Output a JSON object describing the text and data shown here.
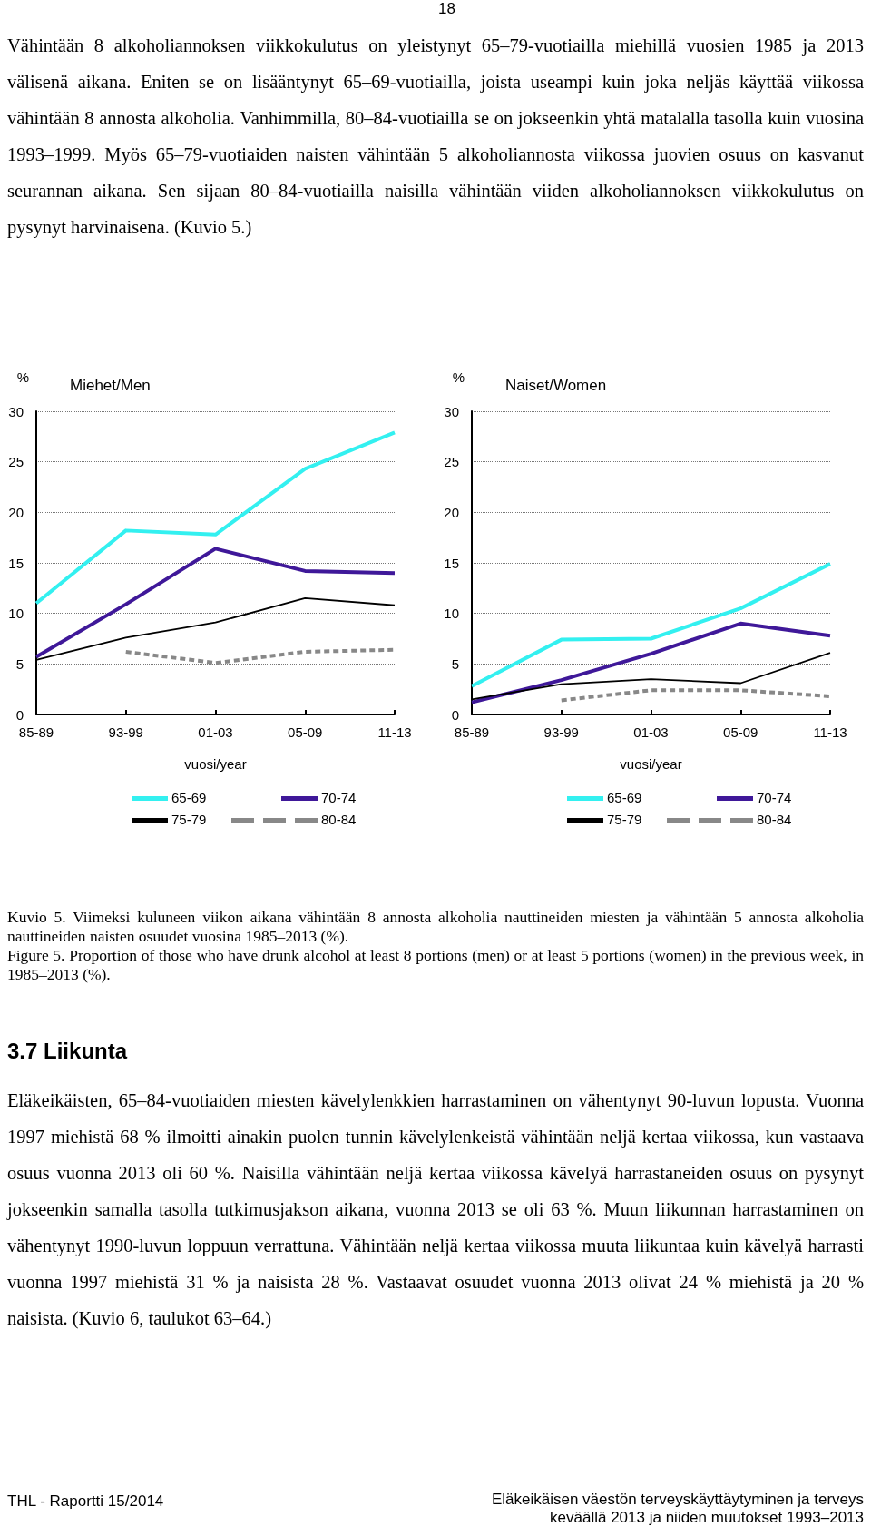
{
  "chart_data": [
    {
      "type": "other",
      "annotations": [
        "18",
        "Vähintään 8 alkoholiannoksen viikkokulutus on yleistynyt 65–79-vuotiailla miehillä vuosien 1985 ja 2013 välisenä aikana. Eniten se on lisääntynyt 65–69-vuotiailla, joista useampi kuin joka neljäs käyttää viikossa vähintään 8 annosta alkoholia. Vanhimmilla, 80–84-vuotiailla se on jokseenkin yhtä matalalla tasolla kuin vuosina 1993–1999. Myös 65–79-vuotiaiden naisten vähintään 5 alkoholiannosta viikossa juovien osuus on kasvanut seurannan aikana. Sen sijaan 80–84-vuotiailla naisilla vähintään viiden alkoholiannoksen viikkokulutus on pysynyt harvinaisena. (Kuvio 5.)"
      ]
    },
    {
      "type": "line",
      "title": "Miehet/Men",
      "ylabel": "%",
      "xlabel": "vuosi/year",
      "categories": [
        "85-89",
        "93-99",
        "01-03",
        "05-09",
        "11-13"
      ],
      "ylim": [
        0,
        30
      ],
      "yticks": [
        0,
        5,
        10,
        15,
        20,
        25,
        30
      ],
      "grid": "y",
      "legend": "bottom",
      "marker": "none",
      "series": [
        {
          "name": "65-69",
          "color": "#33f0f0",
          "line_style": "solid",
          "values": [
            11.0,
            18.2,
            17.8,
            24.3,
            27.9
          ]
        },
        {
          "name": "70-74",
          "color": "#3f1899",
          "line_style": "solid",
          "values": [
            5.7,
            10.9,
            16.4,
            14.2,
            14.0
          ]
        },
        {
          "name": "75-79",
          "color": "#000000",
          "line_style": "solid",
          "values": [
            5.4,
            7.6,
            9.1,
            11.5,
            10.8
          ]
        },
        {
          "name": "80-84",
          "color": "#888888",
          "line_style": "dashed",
          "values": [
            null,
            6.2,
            5.1,
            6.2,
            6.4
          ]
        }
      ]
    },
    {
      "type": "line",
      "title": "Naiset/Women",
      "ylabel": "%",
      "xlabel": "vuosi/year",
      "categories": [
        "85-89",
        "93-99",
        "01-03",
        "05-09",
        "11-13"
      ],
      "ylim": [
        0,
        30
      ],
      "yticks": [
        0,
        5,
        10,
        15,
        20,
        25,
        30
      ],
      "grid": "y",
      "legend": "bottom",
      "marker": "none",
      "series": [
        {
          "name": "65-69",
          "color": "#33f0f0",
          "line_style": "solid",
          "values": [
            2.8,
            7.4,
            7.5,
            10.5,
            14.9
          ]
        },
        {
          "name": "70-74",
          "color": "#3f1899",
          "line_style": "solid",
          "values": [
            1.2,
            3.4,
            6.0,
            9.0,
            7.8
          ]
        },
        {
          "name": "75-79",
          "color": "#000000",
          "line_style": "solid",
          "values": [
            1.5,
            3.0,
            3.5,
            3.1,
            6.1
          ]
        },
        {
          "name": "80-84",
          "color": "#888888",
          "line_style": "dashed",
          "values": [
            null,
            1.4,
            2.4,
            2.4,
            1.8
          ]
        }
      ]
    },
    {
      "type": "other",
      "annotations": [
        "Kuvio 5. Viimeksi kuluneen viikon aikana vähintään 8 annosta alkoholia nauttineiden miesten ja vähintään 5 annosta alkoholia nauttineiden naisten osuudet vuosina 1985–2013 (%).",
        "Figure 5. Proportion of those who have drunk alcohol at least 8 portions (men) or at least 5 portions (women) in the previous week, in 1985–2013 (%).",
        "3.7 Liikunta",
        "Eläkeikäisten, 65–84-vuotiaiden miesten kävelylenkkien harrastaminen on vähentynyt 90-luvun lopusta. Vuonna 1997 miehistä 68 % ilmoitti ainakin puolen tunnin kävelylenkeistä vähintään neljä kertaa viikossa, kun vastaava osuus vuonna 2013 oli 60 %. Naisilla vähintään neljä kertaa viikossa kävelyä harrastaneiden osuus on pysynyt jokseenkin samalla tasolla tutkimusjakson aikana, vuonna 2013 se oli 63 %. Muun liikunnan harrastaminen on vähentynyt 1990-luvun loppuun verrattuna. Vähintään neljä kertaa viikossa muuta liikuntaa kuin kävelyä harrasti vuonna 1997 miehistä 31 % ja naisista 28 %. Vastaavat osuudet vuonna 2013 olivat 24 % miehistä ja 20 % naisista. (Kuvio 6, taulukot 63–64.)",
        "THL - Raportti 15/2014",
        "Eläkeikäisen väestön terveyskäyttäytyminen ja terveys keväällä 2013 ja niiden muutokset 1993–2013"
      ]
    }
  ]
}
